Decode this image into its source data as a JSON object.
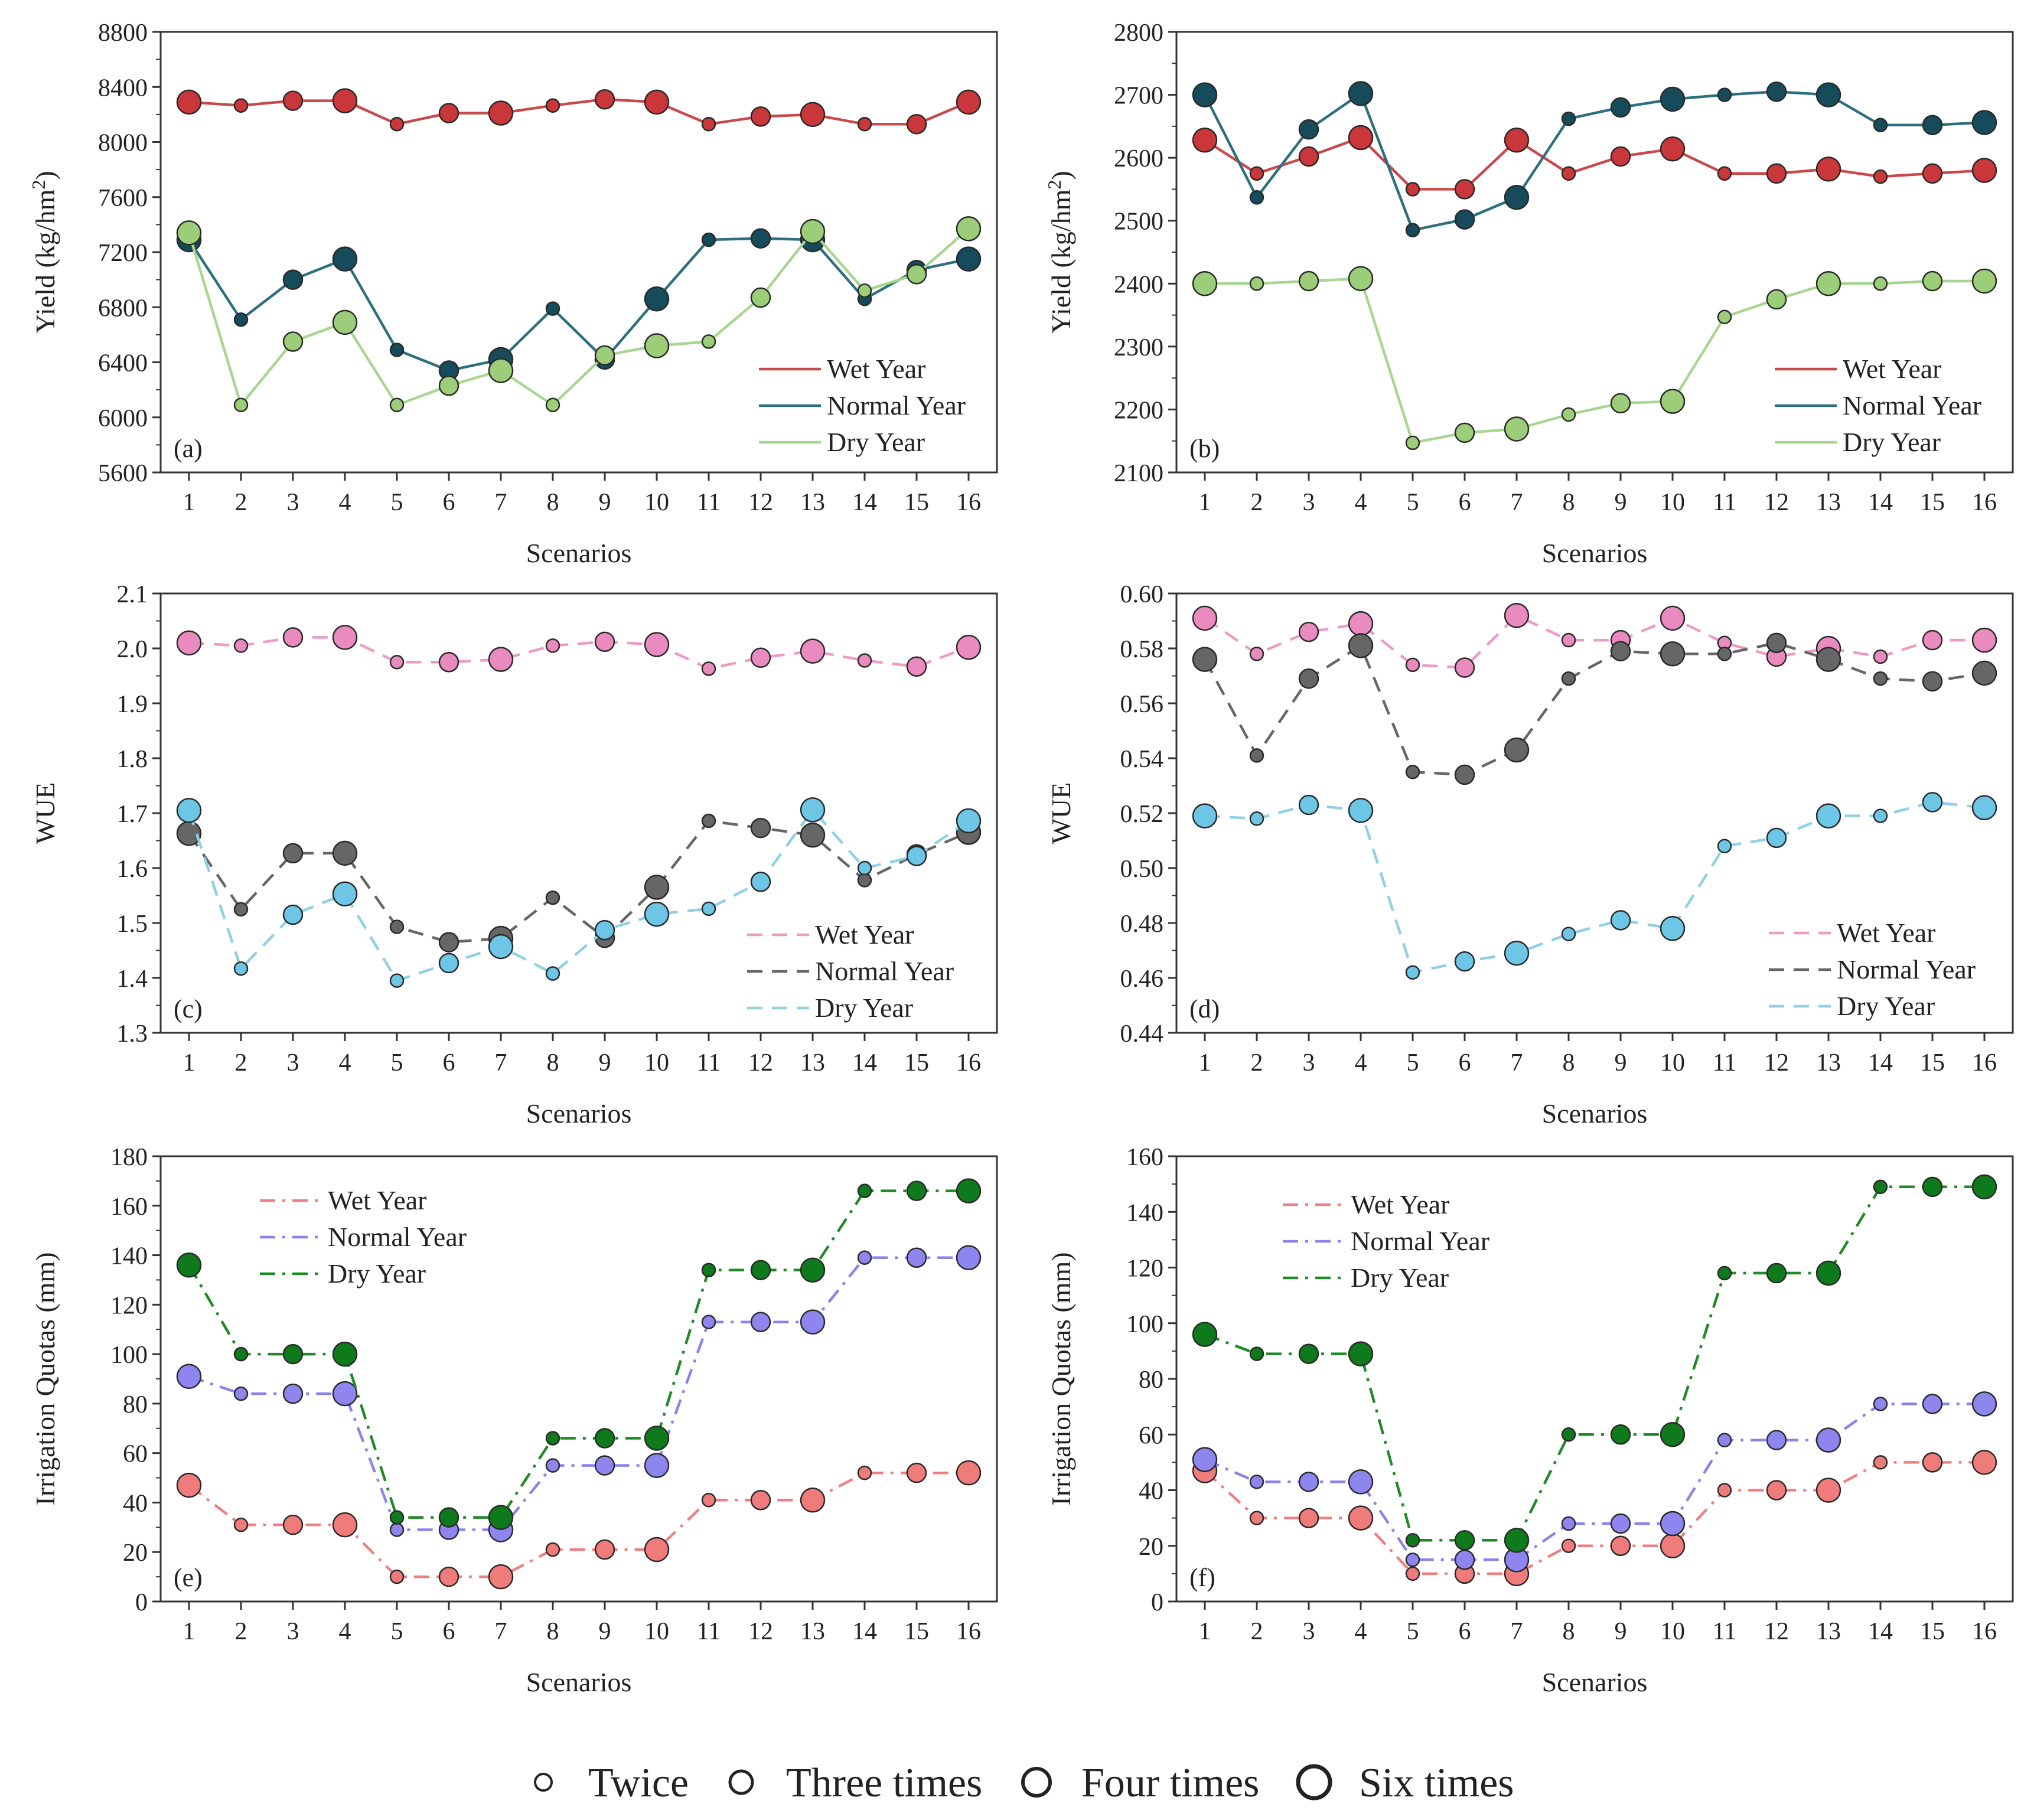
{
  "figure": {
    "size_legend": {
      "entries": [
        {
          "label": "Twice",
          "count": 2
        },
        {
          "label": "Three times",
          "count": 3
        },
        {
          "label": "Four times",
          "count": 4
        },
        {
          "label": "Six times",
          "count": 6
        }
      ]
    }
  },
  "chart_data": [
    {
      "id": "a",
      "type": "line",
      "panel_label": "(a)",
      "xlabel": "Scenarios",
      "ylabel": "Yield (kg/hm",
      "ylabel_sup": "2",
      "ylabel_close": ")",
      "x": [
        1,
        2,
        3,
        4,
        5,
        6,
        7,
        8,
        9,
        10,
        11,
        12,
        13,
        14,
        15,
        16
      ],
      "ylim": [
        5600,
        8800
      ],
      "yticks": [
        5600,
        6000,
        6400,
        6800,
        7200,
        7600,
        8000,
        8400,
        8800
      ],
      "dash": "solid",
      "series": [
        {
          "name": "Wet Year",
          "line_color": "#c9494a",
          "marker_color": "#c9373a",
          "values": [
            8290,
            8265,
            8300,
            8300,
            8130,
            8210,
            8210,
            8265,
            8310,
            8290,
            8130,
            8185,
            8200,
            8130,
            8130,
            8290
          ]
        },
        {
          "name": "Normal Year",
          "line_color": "#2e6f7e",
          "marker_color": "#154b5a",
          "values": [
            7290,
            6710,
            7000,
            7150,
            6490,
            6340,
            6420,
            6790,
            6420,
            6860,
            7290,
            7300,
            7290,
            6860,
            7070,
            7150
          ]
        },
        {
          "name": "Dry Year",
          "line_color": "#a7d68f",
          "marker_color": "#9ccd78",
          "values": [
            7340,
            6090,
            6550,
            6690,
            6090,
            6230,
            6340,
            6090,
            6450,
            6520,
            6550,
            6870,
            7350,
            6920,
            7040,
            7370
          ]
        }
      ],
      "irrigation_counts": [
        4,
        2,
        3,
        4,
        2,
        3,
        4,
        2,
        3,
        4,
        2,
        3,
        4,
        2,
        3,
        4
      ]
    },
    {
      "id": "b",
      "type": "line",
      "panel_label": "(b)",
      "xlabel": "Scenarios",
      "ylabel": "Yield (kg/hm",
      "ylabel_sup": "2",
      "ylabel_close": ")",
      "x": [
        1,
        2,
        3,
        4,
        5,
        6,
        7,
        8,
        9,
        10,
        11,
        12,
        13,
        14,
        15,
        16
      ],
      "ylim": [
        2100,
        2800
      ],
      "yticks": [
        2100,
        2200,
        2300,
        2400,
        2500,
        2600,
        2700,
        2800
      ],
      "dash": "solid",
      "series": [
        {
          "name": "Wet Year",
          "line_color": "#c9494a",
          "marker_color": "#c9373a",
          "values": [
            2628,
            2575,
            2602,
            2632,
            2550,
            2550,
            2628,
            2575,
            2602,
            2614,
            2575,
            2575,
            2582,
            2570,
            2575,
            2580
          ]
        },
        {
          "name": "Normal Year",
          "line_color": "#2e6f7e",
          "marker_color": "#154b5a",
          "values": [
            2700,
            2537,
            2645,
            2702,
            2485,
            2502,
            2537,
            2662,
            2680,
            2693,
            2700,
            2705,
            2700,
            2652,
            2652,
            2656
          ]
        },
        {
          "name": "Dry Year",
          "line_color": "#a7d68f",
          "marker_color": "#9ccd78",
          "values": [
            2400,
            2400,
            2404,
            2408,
            2147,
            2163,
            2169,
            2192,
            2210,
            2213,
            2347,
            2375,
            2400,
            2400,
            2404,
            2404
          ]
        }
      ],
      "irrigation_counts": [
        4,
        2,
        3,
        4,
        2,
        3,
        4,
        2,
        3,
        4,
        2,
        3,
        4,
        2,
        3,
        4
      ]
    },
    {
      "id": "c",
      "type": "line",
      "panel_label": "(c)",
      "xlabel": "Scenarios",
      "ylabel": "WUE",
      "x": [
        1,
        2,
        3,
        4,
        5,
        6,
        7,
        8,
        9,
        10,
        11,
        12,
        13,
        14,
        15,
        16
      ],
      "ylim": [
        1.3,
        2.1
      ],
      "yticks": [
        "1.3",
        "1.4",
        "1.5",
        "1.6",
        "1.7",
        "1.8",
        "1.9",
        "2.0",
        "2.1"
      ],
      "dash": "dashed",
      "series": [
        {
          "name": "Wet Year",
          "line_color": "#ee9bc4",
          "marker_color": "#e98bbe",
          "values": [
            2.01,
            2.005,
            2.02,
            2.02,
            1.975,
            1.975,
            1.98,
            2.005,
            2.012,
            2.007,
            1.963,
            1.983,
            1.995,
            1.978,
            1.967,
            2.002
          ]
        },
        {
          "name": "Normal Year",
          "line_color": "#666666",
          "marker_color": "#666666",
          "values": [
            1.663,
            1.525,
            1.627,
            1.627,
            1.493,
            1.465,
            1.472,
            1.546,
            1.473,
            1.565,
            1.686,
            1.673,
            1.66,
            1.578,
            1.625,
            1.665
          ]
        },
        {
          "name": "Dry Year",
          "line_color": "#8fd0e6",
          "marker_color": "#6ec6e6",
          "values": [
            1.705,
            1.417,
            1.515,
            1.553,
            1.395,
            1.427,
            1.457,
            1.408,
            1.487,
            1.516,
            1.526,
            1.575,
            1.706,
            1.6,
            1.622,
            1.686
          ]
        }
      ],
      "irrigation_counts": [
        4,
        2,
        3,
        4,
        2,
        3,
        4,
        2,
        3,
        4,
        2,
        3,
        4,
        2,
        3,
        4
      ]
    },
    {
      "id": "d",
      "type": "line",
      "panel_label": "(d)",
      "xlabel": "Scenarios",
      "ylabel": "WUE",
      "x": [
        1,
        2,
        3,
        4,
        5,
        6,
        7,
        8,
        9,
        10,
        11,
        12,
        13,
        14,
        15,
        16
      ],
      "ylim": [
        0.44,
        0.6
      ],
      "yticks": [
        "0.44",
        "0.46",
        "0.48",
        "0.50",
        "0.52",
        "0.54",
        "0.56",
        "0.58",
        "0.60"
      ],
      "dash": "dashed",
      "series": [
        {
          "name": "Wet Year",
          "line_color": "#ee9bc4",
          "marker_color": "#e98bbe",
          "values": [
            0.591,
            0.578,
            0.586,
            0.589,
            0.574,
            0.573,
            0.592,
            0.583,
            0.583,
            0.591,
            0.582,
            0.577,
            0.58,
            0.577,
            0.583,
            0.583
          ]
        },
        {
          "name": "Normal Year",
          "line_color": "#666666",
          "marker_color": "#666666",
          "values": [
            0.576,
            0.541,
            0.569,
            0.581,
            0.535,
            0.534,
            0.543,
            0.569,
            0.579,
            0.578,
            0.578,
            0.582,
            0.576,
            0.569,
            0.568,
            0.571
          ]
        },
        {
          "name": "Dry Year",
          "line_color": "#8fd0e6",
          "marker_color": "#6ec6e6",
          "values": [
            0.519,
            0.518,
            0.523,
            0.521,
            0.462,
            0.466,
            0.469,
            0.476,
            0.481,
            0.478,
            0.508,
            0.511,
            0.519,
            0.519,
            0.524,
            0.522
          ]
        }
      ],
      "irrigation_counts": [
        4,
        2,
        3,
        4,
        2,
        3,
        4,
        2,
        3,
        4,
        2,
        3,
        4,
        2,
        3,
        4
      ]
    },
    {
      "id": "e",
      "type": "line",
      "panel_label": "(e)",
      "xlabel": "Scenarios",
      "ylabel": "Irrigation Quotas (mm)",
      "x": [
        1,
        2,
        3,
        4,
        5,
        6,
        7,
        8,
        9,
        10,
        11,
        12,
        13,
        14,
        15,
        16
      ],
      "ylim": [
        0,
        180
      ],
      "yticks": [
        "0",
        "20",
        "40",
        "60",
        "80",
        "100",
        "120",
        "140",
        "160",
        "180"
      ],
      "dash": "dashdot",
      "series": [
        {
          "name": "Wet Year",
          "line_color": "#f08080",
          "marker_color": "#f07b7b",
          "values": [
            47,
            31,
            31,
            31,
            10,
            10,
            10,
            21,
            21,
            21,
            41,
            41,
            41,
            52,
            52,
            52
          ]
        },
        {
          "name": "Normal Year",
          "line_color": "#8b84e8",
          "marker_color": "#8e86ee",
          "values": [
            91,
            84,
            84,
            84,
            29,
            29,
            29,
            55,
            55,
            55,
            113,
            113,
            113,
            139,
            139,
            139
          ]
        },
        {
          "name": "Dry Year",
          "line_color": "#1f8a26",
          "marker_color": "#0e7a1c",
          "values": [
            136,
            100,
            100,
            100,
            34,
            34,
            34,
            66,
            66,
            66,
            134,
            134,
            134,
            166,
            166,
            166
          ]
        }
      ],
      "irrigation_counts": [
        4,
        2,
        3,
        4,
        2,
        3,
        4,
        2,
        3,
        4,
        2,
        3,
        4,
        2,
        3,
        4
      ]
    },
    {
      "id": "f",
      "type": "line",
      "panel_label": "(f)",
      "xlabel": "Scenarios",
      "ylabel": "Irrigation Quotas (mm)",
      "x": [
        1,
        2,
        3,
        4,
        5,
        6,
        7,
        8,
        9,
        10,
        11,
        12,
        13,
        14,
        15,
        16
      ],
      "ylim": [
        0,
        160
      ],
      "yticks": [
        "0",
        "20",
        "40",
        "60",
        "80",
        "100",
        "120",
        "140",
        "160"
      ],
      "dash": "dashdot",
      "series": [
        {
          "name": "Wet Year",
          "line_color": "#f08080",
          "marker_color": "#f07b7b",
          "values": [
            47,
            30,
            30,
            30,
            10,
            10,
            10,
            20,
            20,
            20,
            40,
            40,
            40,
            50,
            50,
            50
          ]
        },
        {
          "name": "Normal Year",
          "line_color": "#8b84e8",
          "marker_color": "#8e86ee",
          "values": [
            51,
            43,
            43,
            43,
            15,
            15,
            15,
            28,
            28,
            28,
            58,
            58,
            58,
            71,
            71,
            71
          ]
        },
        {
          "name": "Dry Year",
          "line_color": "#1f8a26",
          "marker_color": "#0e7a1c",
          "values": [
            96,
            89,
            89,
            89,
            22,
            22,
            22,
            60,
            60,
            60,
            118,
            118,
            118,
            149,
            149,
            149
          ]
        }
      ],
      "irrigation_counts": [
        4,
        2,
        3,
        4,
        2,
        3,
        4,
        2,
        3,
        4,
        2,
        3,
        4,
        2,
        3,
        4
      ]
    }
  ]
}
